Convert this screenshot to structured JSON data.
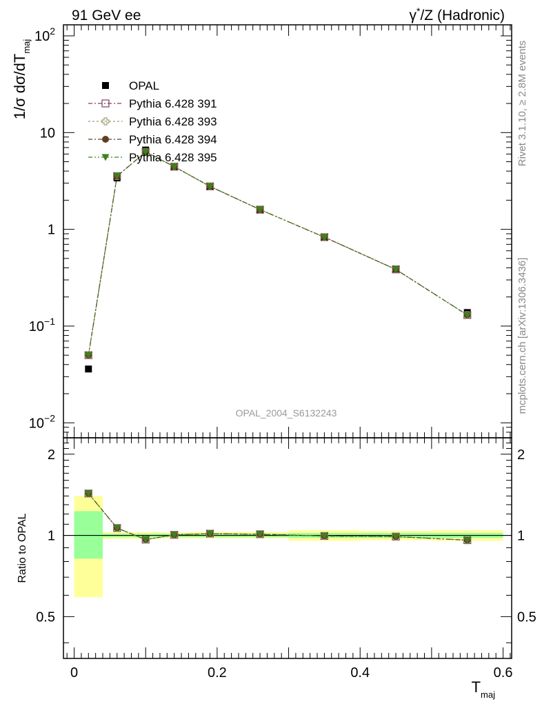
{
  "header": {
    "left": "91 GeV ee",
    "right_prefix": "γ",
    "right_star": "*",
    "right_rest": "/Z (Hadronic)"
  },
  "side_labels": {
    "rivet": "Rivet 3.1.10, ≥ 2.8M events",
    "mcplots": "mcplots.cern.ch [arXiv:1306.3436]"
  },
  "watermark": "OPAL_2004_S6132243",
  "colors": {
    "data": "#000000",
    "p391": "#7f3f5f",
    "p393": "#9f9f6f",
    "p394": "#5f3f1f",
    "p395": "#3f7f1f",
    "band_inner": "#99ff99",
    "band_outer": "#ffff99"
  },
  "chart_data": {
    "type": "scatter",
    "x": [
      0.02,
      0.06,
      0.1,
      0.14,
      0.19,
      0.26,
      0.35,
      0.45,
      0.55
    ],
    "x_bins": [
      [
        0.0,
        0.04
      ],
      [
        0.04,
        0.08
      ],
      [
        0.08,
        0.12
      ],
      [
        0.12,
        0.16
      ],
      [
        0.16,
        0.22
      ],
      [
        0.22,
        0.3
      ],
      [
        0.3,
        0.4
      ],
      [
        0.4,
        0.5
      ],
      [
        0.5,
        0.6
      ]
    ],
    "xlabel_main": "T",
    "xlabel_sub": "maj",
    "ylabel": "1/σ dσ/dT",
    "ylabel_sub": "maj",
    "xlim": [
      -0.015,
      0.612
    ],
    "ylim": [
      0.007,
      130
    ],
    "yscale": "log",
    "x_ticks": [
      {
        "v": 0.0,
        "label": "0"
      },
      {
        "v": 0.2,
        "label": "0.2"
      },
      {
        "v": 0.4,
        "label": "0.4"
      },
      {
        "v": 0.6,
        "label": "0.6"
      }
    ],
    "y_ticks": [
      {
        "v": 0.01,
        "base": "10",
        "exp": "−2"
      },
      {
        "v": 0.1,
        "base": "10",
        "exp": "−1"
      },
      {
        "v": 1,
        "base": "1",
        "exp": ""
      },
      {
        "v": 10,
        "base": "10",
        "exp": ""
      },
      {
        "v": 100,
        "base": "10",
        "exp": "2"
      }
    ],
    "series": [
      {
        "name": "OPAL",
        "key": "data",
        "marker": "square-filled",
        "values": [
          0.036,
          3.4,
          6.6,
          4.4,
          2.75,
          1.58,
          0.83,
          0.39,
          0.138
        ]
      },
      {
        "name": "Pythia 6.428 391",
        "key": "p391",
        "marker": "square-open",
        "dash": "6,3,2,3",
        "values": [
          0.05,
          3.55,
          6.3,
          4.45,
          2.78,
          1.6,
          0.83,
          0.385,
          0.13
        ]
      },
      {
        "name": "Pythia 6.428 393",
        "key": "p393",
        "marker": "cross-open",
        "dash": "3,3",
        "values": [
          0.05,
          3.55,
          6.3,
          4.45,
          2.78,
          1.6,
          0.83,
          0.385,
          0.13
        ]
      },
      {
        "name": "Pythia 6.428 394",
        "key": "p394",
        "marker": "circle-filled",
        "dash": "6,3,2,3",
        "values": [
          0.05,
          3.55,
          6.3,
          4.45,
          2.78,
          1.6,
          0.83,
          0.385,
          0.13
        ]
      },
      {
        "name": "Pythia 6.428 395",
        "key": "p395",
        "marker": "triangle-down-filled",
        "dash": "6,3,2,3,2,3",
        "values": [
          0.05,
          3.55,
          6.3,
          4.45,
          2.78,
          1.6,
          0.83,
          0.385,
          0.13
        ]
      }
    ],
    "ratio": {
      "ylabel": "Ratio to OPAL",
      "ylim": [
        0.35,
        2.3
      ],
      "y_ticks": [
        {
          "v": 0.5,
          "label": "0.5"
        },
        {
          "v": 1,
          "label": "1"
        },
        {
          "v": 2,
          "label": "2"
        }
      ],
      "band_inner": [
        [
          0.82,
          1.23
        ],
        [
          0.985,
          1.015
        ],
        [
          0.985,
          1.015
        ],
        [
          0.985,
          1.015
        ],
        [
          0.985,
          1.015
        ],
        [
          0.985,
          1.015
        ],
        [
          0.98,
          1.02
        ],
        [
          0.98,
          1.02
        ],
        [
          0.98,
          1.02
        ]
      ],
      "band_outer": [
        [
          0.59,
          1.4
        ],
        [
          0.97,
          1.03
        ],
        [
          0.97,
          1.03
        ],
        [
          0.975,
          1.025
        ],
        [
          0.975,
          1.03
        ],
        [
          0.975,
          1.03
        ],
        [
          0.955,
          1.045
        ],
        [
          0.96,
          1.04
        ],
        [
          0.955,
          1.045
        ]
      ],
      "values": [
        1.43,
        1.065,
        0.965,
        1.005,
        1.015,
        1.01,
        0.995,
        0.99,
        0.96
      ]
    }
  }
}
